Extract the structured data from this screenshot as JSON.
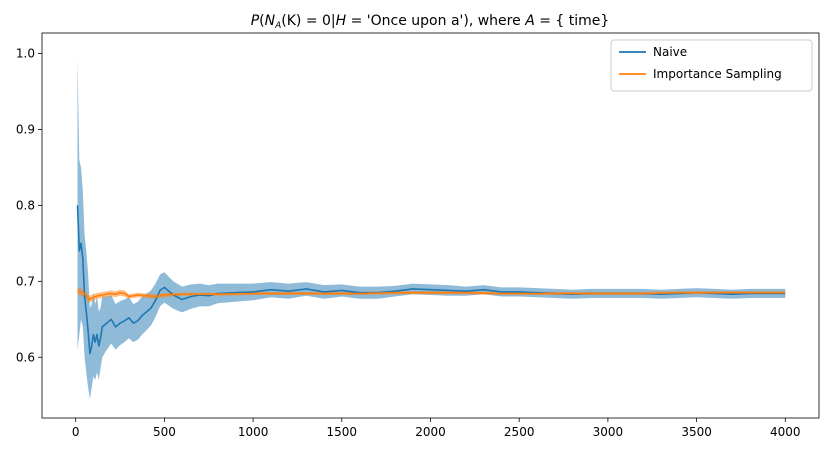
{
  "chart_data": {
    "type": "line",
    "title": "P(N_A(K) = 0 | H = 'Once upon a'), where A = { time}",
    "title_parts": {
      "p": "P",
      "open_paren": "(",
      "n": "N",
      "sub_a": "A",
      "k_part": "(K) = 0|",
      "h": "H",
      "rest": " = 'Once upon a'), where ",
      "a": "A",
      "set": " = { time}"
    },
    "xlabel": "",
    "ylabel": "",
    "xlim": [
      -190,
      4190
    ],
    "ylim": [
      0.52,
      1.027
    ],
    "x_ticks": [
      0,
      500,
      1000,
      1500,
      2000,
      2500,
      3000,
      3500,
      4000
    ],
    "y_ticks": [
      0.6,
      0.7,
      0.8,
      0.9,
      1.0
    ],
    "y_tick_labels": [
      "0.6",
      "0.7",
      "0.8",
      "0.9",
      "1.0"
    ],
    "grid": false,
    "legend_position": "top-right",
    "series": [
      {
        "name": "Naive",
        "color": "#1f77b4",
        "band_color": "#1f77b4",
        "band_opacity": 0.5,
        "x": [
          10,
          20,
          30,
          40,
          50,
          60,
          70,
          80,
          90,
          100,
          110,
          120,
          130,
          140,
          150,
          175,
          200,
          225,
          250,
          275,
          300,
          325,
          350,
          375,
          400,
          425,
          450,
          475,
          500,
          550,
          600,
          650,
          700,
          750,
          800,
          900,
          1000,
          1100,
          1200,
          1300,
          1400,
          1500,
          1600,
          1700,
          1800,
          1900,
          2000,
          2100,
          2200,
          2300,
          2400,
          2500,
          2600,
          2700,
          2800,
          2900,
          3000,
          3100,
          3200,
          3300,
          3400,
          3500,
          3600,
          3700,
          3800,
          3900,
          4000
        ],
        "y": [
          0.8,
          0.74,
          0.75,
          0.73,
          0.68,
          0.66,
          0.635,
          0.605,
          0.615,
          0.63,
          0.62,
          0.63,
          0.615,
          0.625,
          0.64,
          0.645,
          0.65,
          0.64,
          0.645,
          0.648,
          0.652,
          0.645,
          0.648,
          0.655,
          0.66,
          0.665,
          0.675,
          0.688,
          0.692,
          0.682,
          0.676,
          0.68,
          0.682,
          0.681,
          0.684,
          0.685,
          0.686,
          0.689,
          0.687,
          0.69,
          0.686,
          0.688,
          0.685,
          0.685,
          0.687,
          0.69,
          0.689,
          0.688,
          0.687,
          0.689,
          0.686,
          0.686,
          0.685,
          0.684,
          0.683,
          0.684,
          0.684,
          0.684,
          0.684,
          0.683,
          0.684,
          0.685,
          0.684,
          0.683,
          0.684,
          0.684,
          0.684
        ],
        "band_lower": [
          0.61,
          0.63,
          0.65,
          0.64,
          0.6,
          0.58,
          0.56,
          0.545,
          0.56,
          0.575,
          0.57,
          0.58,
          0.57,
          0.585,
          0.6,
          0.61,
          0.618,
          0.61,
          0.616,
          0.62,
          0.625,
          0.62,
          0.623,
          0.63,
          0.636,
          0.642,
          0.653,
          0.667,
          0.672,
          0.664,
          0.659,
          0.664,
          0.667,
          0.667,
          0.671,
          0.673,
          0.675,
          0.679,
          0.677,
          0.681,
          0.677,
          0.68,
          0.677,
          0.677,
          0.68,
          0.683,
          0.682,
          0.681,
          0.681,
          0.683,
          0.68,
          0.68,
          0.679,
          0.678,
          0.677,
          0.678,
          0.678,
          0.678,
          0.678,
          0.677,
          0.678,
          0.679,
          0.678,
          0.677,
          0.678,
          0.678,
          0.678
        ],
        "band_upper": [
          0.995,
          0.86,
          0.85,
          0.82,
          0.76,
          0.74,
          0.71,
          0.665,
          0.67,
          0.685,
          0.67,
          0.68,
          0.66,
          0.665,
          0.68,
          0.68,
          0.682,
          0.67,
          0.674,
          0.676,
          0.679,
          0.67,
          0.673,
          0.68,
          0.684,
          0.688,
          0.697,
          0.709,
          0.712,
          0.7,
          0.693,
          0.696,
          0.697,
          0.695,
          0.697,
          0.697,
          0.697,
          0.699,
          0.697,
          0.699,
          0.695,
          0.696,
          0.693,
          0.693,
          0.694,
          0.697,
          0.696,
          0.695,
          0.693,
          0.695,
          0.692,
          0.692,
          0.691,
          0.69,
          0.689,
          0.69,
          0.69,
          0.69,
          0.69,
          0.689,
          0.69,
          0.691,
          0.69,
          0.689,
          0.69,
          0.69,
          0.69
        ]
      },
      {
        "name": "Importance Sampling",
        "color": "#ff7f0e",
        "band_color": "#ff7f0e",
        "band_opacity": 0.5,
        "x": [
          10,
          25,
          50,
          75,
          100,
          125,
          150,
          175,
          200,
          225,
          250,
          275,
          300,
          350,
          400,
          450,
          500,
          600,
          700,
          800,
          1000,
          1200,
          1400,
          1600,
          1800,
          2000,
          2200,
          2400,
          2600,
          2800,
          3000,
          3200,
          3400,
          3600,
          3800,
          4000
        ],
        "y": [
          0.687,
          0.686,
          0.684,
          0.676,
          0.679,
          0.681,
          0.682,
          0.683,
          0.684,
          0.683,
          0.685,
          0.684,
          0.68,
          0.682,
          0.681,
          0.68,
          0.682,
          0.683,
          0.683,
          0.683,
          0.684,
          0.684,
          0.684,
          0.684,
          0.685,
          0.685,
          0.685,
          0.684,
          0.684,
          0.684,
          0.684,
          0.684,
          0.685,
          0.685,
          0.685,
          0.685
        ],
        "band_lower": [
          0.682,
          0.681,
          0.679,
          0.671,
          0.675,
          0.677,
          0.678,
          0.679,
          0.68,
          0.679,
          0.681,
          0.68,
          0.677,
          0.679,
          0.678,
          0.677,
          0.679,
          0.681,
          0.681,
          0.681,
          0.682,
          0.682,
          0.682,
          0.682,
          0.683,
          0.683,
          0.683,
          0.682,
          0.682,
          0.682,
          0.682,
          0.682,
          0.683,
          0.683,
          0.683,
          0.683
        ],
        "band_upper": [
          0.692,
          0.691,
          0.689,
          0.681,
          0.683,
          0.685,
          0.686,
          0.687,
          0.688,
          0.687,
          0.689,
          0.688,
          0.683,
          0.685,
          0.684,
          0.683,
          0.685,
          0.685,
          0.685,
          0.685,
          0.686,
          0.686,
          0.686,
          0.686,
          0.687,
          0.687,
          0.687,
          0.686,
          0.686,
          0.686,
          0.686,
          0.686,
          0.687,
          0.687,
          0.687,
          0.687
        ]
      }
    ]
  }
}
